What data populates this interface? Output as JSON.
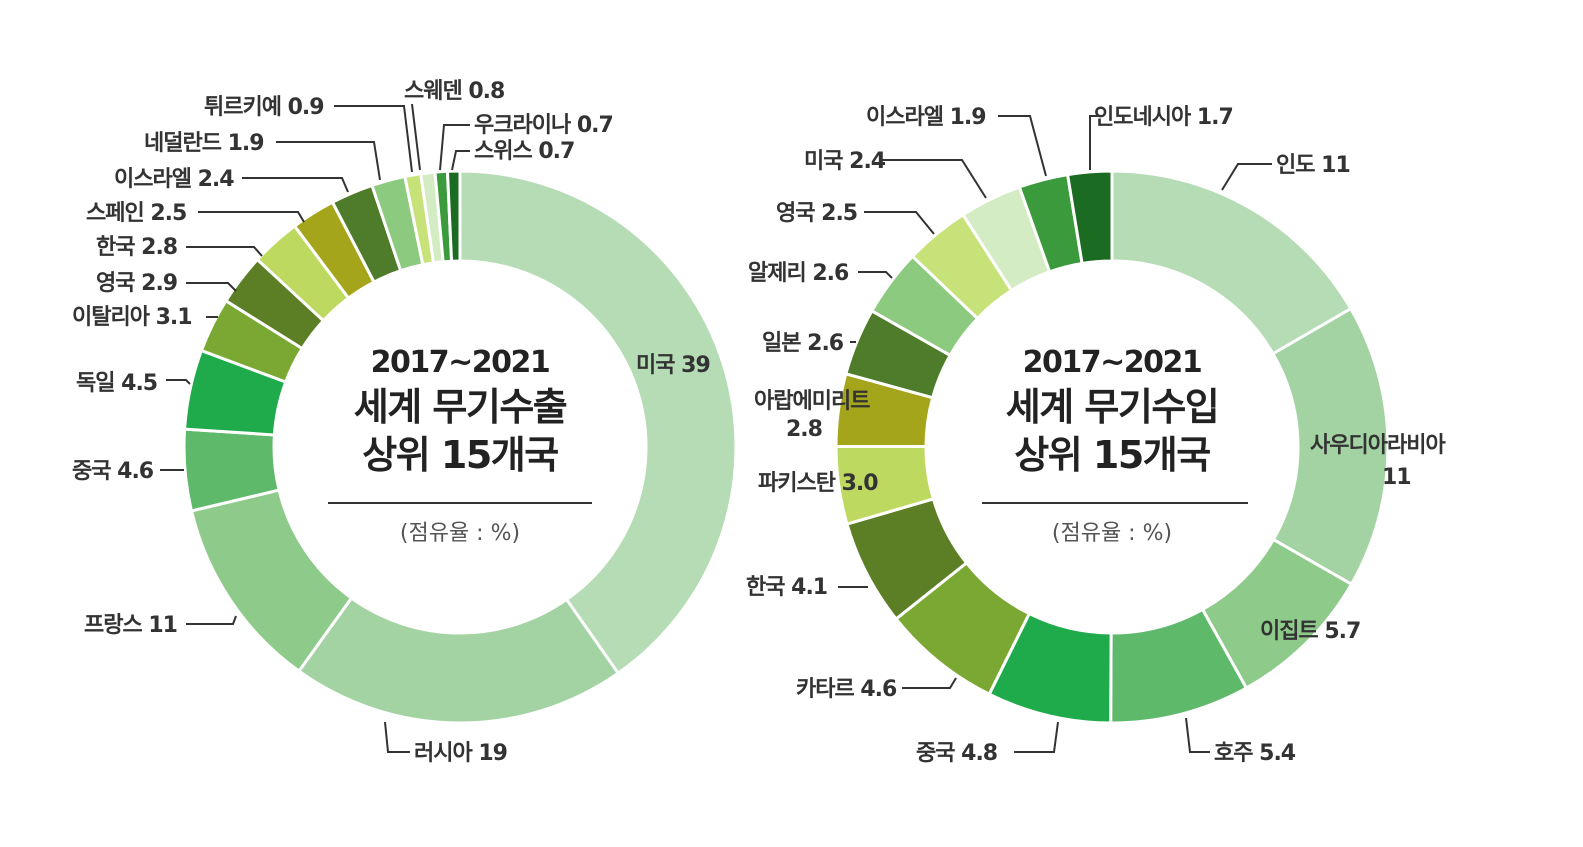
{
  "chart_data": [
    {
      "type": "pie",
      "variant": "donut",
      "title_lines": [
        "2017~2021",
        "세계 무기수출",
        "상위 15개국"
      ],
      "unit": "(점유율 : %)",
      "slices": [
        {
          "label": "미국 39",
          "name": "미국",
          "value": 39,
          "color": "#b5dcb4"
        },
        {
          "label": "러시아 19",
          "name": "러시아",
          "value": 19,
          "color": "#a3d3a2"
        },
        {
          "label": "프랑스 11",
          "name": "프랑스",
          "value": 11,
          "color": "#8ecb8b"
        },
        {
          "label": "중국 4.6",
          "name": "중국",
          "value": 4.6,
          "color": "#5fb96b"
        },
        {
          "label": "독일 4.5",
          "name": "독일",
          "value": 4.5,
          "color": "#1fab4b"
        },
        {
          "label": "이탈리아 3.1",
          "name": "이탈리아",
          "value": 3.1,
          "color": "#7ba833"
        },
        {
          "label": "영국 2.9",
          "name": "영국",
          "value": 2.9,
          "color": "#5c7f26"
        },
        {
          "label": "한국 2.8",
          "name": "한국",
          "value": 2.8,
          "color": "#bed960"
        },
        {
          "label": "스페인 2.5",
          "name": "스페인",
          "value": 2.5,
          "color": "#a5a51b"
        },
        {
          "label": "이스라엘 2.4",
          "name": "이스라엘",
          "value": 2.4,
          "color": "#4f7c2a"
        },
        {
          "label": "네덜란드 1.9",
          "name": "네덜란드",
          "value": 1.9,
          "color": "#8ccb7f"
        },
        {
          "label": "튀르키예 0.9",
          "name": "튀르키예",
          "value": 0.9,
          "color": "#c8e27a"
        },
        {
          "label": "스웨덴 0.8",
          "name": "스웨덴",
          "value": 0.8,
          "color": "#d4ecc4"
        },
        {
          "label": "우크라이나 0.7",
          "name": "우크라이나",
          "value": 0.7,
          "color": "#3b9a3b"
        },
        {
          "label": "스위스 0.7",
          "name": "스위스",
          "value": 0.7,
          "color": "#1b6b22"
        }
      ]
    },
    {
      "type": "pie",
      "variant": "donut",
      "title_lines": [
        "2017~2021",
        "세계 무기수입",
        "상위 15개국"
      ],
      "unit": "(점유율 : %)",
      "slices": [
        {
          "label": "인도 11",
          "name": "인도",
          "value": 11,
          "color": "#b5dcb4"
        },
        {
          "label_lines": [
            "사우디아라비아",
            "11"
          ],
          "name": "사우디아라비아",
          "value": 11,
          "color": "#a3d3a2"
        },
        {
          "label": "이집트 5.7",
          "name": "이집트",
          "value": 5.7,
          "color": "#8ecb8b"
        },
        {
          "label": "호주 5.4",
          "name": "호주",
          "value": 5.4,
          "color": "#5fb96b"
        },
        {
          "label": "중국 4.8",
          "name": "중국",
          "value": 4.8,
          "color": "#1fab4b"
        },
        {
          "label": "카타르 4.6",
          "name": "카타르",
          "value": 4.6,
          "color": "#7ba833"
        },
        {
          "label": "한국 4.1",
          "name": "한국",
          "value": 4.1,
          "color": "#5c7f26"
        },
        {
          "label": "파키스탄 3.0",
          "name": "파키스탄",
          "value": 3.0,
          "color": "#bed960"
        },
        {
          "label_lines": [
            "아랍에미리트",
            "2.8"
          ],
          "name": "아랍에미리트",
          "value": 2.8,
          "color": "#a5a51b"
        },
        {
          "label": "일본 2.6",
          "name": "일본",
          "value": 2.6,
          "color": "#4f7c2a"
        },
        {
          "label": "알제리 2.6",
          "name": "알제리",
          "value": 2.6,
          "color": "#8ccb7f"
        },
        {
          "label": "영국 2.5",
          "name": "영국",
          "value": 2.5,
          "color": "#c8e27a"
        },
        {
          "label": "미국 2.4",
          "name": "미국",
          "value": 2.4,
          "color": "#d4ecc4"
        },
        {
          "label": "이스라엘 1.9",
          "name": "이스라엘",
          "value": 1.9,
          "color": "#3b9a3b"
        },
        {
          "label": "인도네시아 1.7",
          "name": "인도네시아",
          "value": 1.7,
          "color": "#1b6b22"
        }
      ]
    }
  ]
}
